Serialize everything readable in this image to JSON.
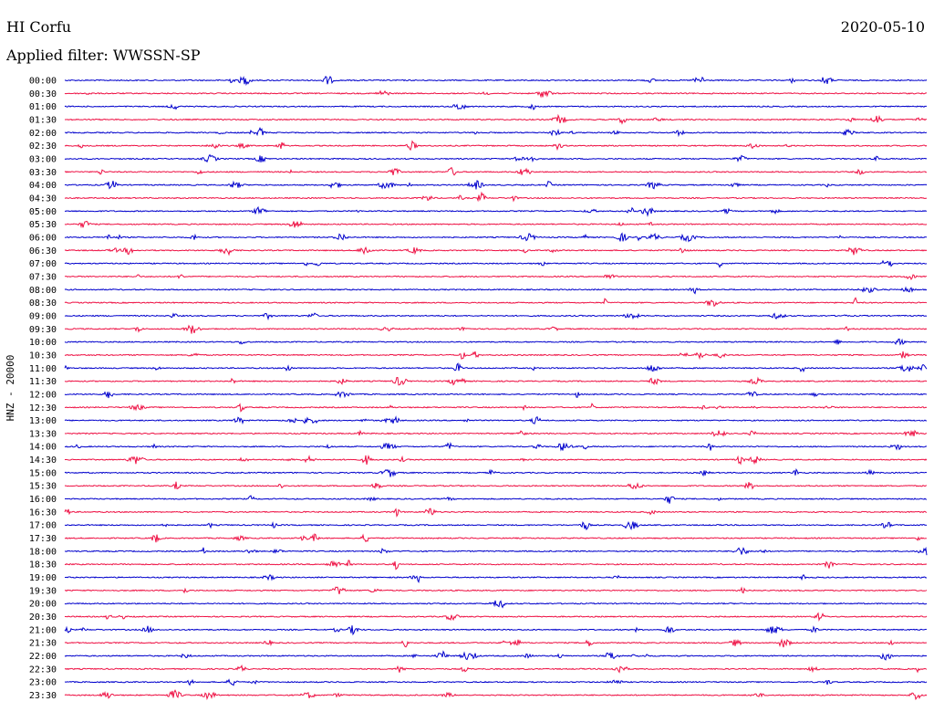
{
  "header": {
    "station": "HI Corfu",
    "date": "2020-05-10",
    "filter": "Applied filter: WWSSN-SP"
  },
  "chart_data": {
    "type": "line",
    "title": "HI Corfu",
    "subtitle": "Applied filter: WWSSN-SP",
    "ylabel": "HNZ - 20000",
    "row_labels": [
      "00:00",
      "00:30",
      "01:00",
      "01:30",
      "02:00",
      "02:30",
      "03:00",
      "03:30",
      "04:00",
      "04:30",
      "05:00",
      "05:30",
      "06:00",
      "06:30",
      "07:00",
      "07:30",
      "08:00",
      "08:30",
      "09:00",
      "09:30",
      "10:00",
      "10:30",
      "11:00",
      "11:30",
      "12:00",
      "12:30",
      "13:00",
      "13:30",
      "14:00",
      "14:30",
      "15:00",
      "15:30",
      "16:00",
      "16:30",
      "17:00",
      "17:30",
      "18:00",
      "18:30",
      "19:00",
      "19:30",
      "20:00",
      "20:30",
      "21:00",
      "21:30",
      "22:00",
      "22:30",
      "23:00",
      "23:30"
    ],
    "colors": [
      "#0000cc",
      "#ee1144"
    ],
    "grid": false,
    "legend": "none"
  }
}
